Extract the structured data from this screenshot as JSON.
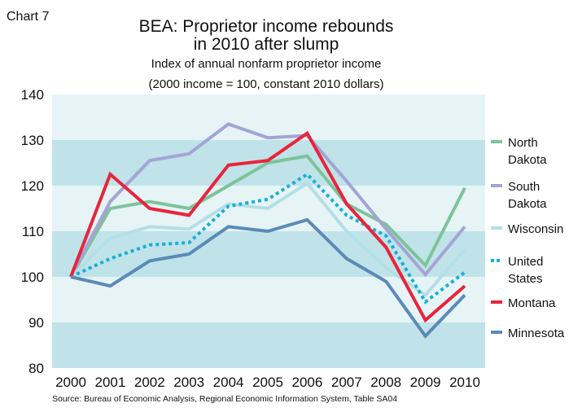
{
  "figure_label": "Chart 7",
  "source_note": "Source: Bureau of Economic Analysis, Regional Economic Information System, Table SA04",
  "chart_data": {
    "type": "line",
    "title_lines": [
      "BEA: Proprietor income rebounds",
      "in 2010 after slump"
    ],
    "subtitle_lines": [
      "Index of annual nonfarm proprietor income",
      "(2000 income = 100, constant 2010 dollars)"
    ],
    "xlabel": "",
    "ylabel": "",
    "x": [
      "2000",
      "2001",
      "2002",
      "2003",
      "2004",
      "2005",
      "2006",
      "2007",
      "2008",
      "2009",
      "2010"
    ],
    "ylim": [
      80,
      140
    ],
    "yticks": [
      "80",
      "90",
      "100",
      "110",
      "120",
      "130",
      "140"
    ],
    "grid": false,
    "band_colors": [
      "#bfe3e8",
      "#e6f4f6"
    ],
    "legend_position": "right",
    "series": [
      {
        "name": "North Dakota",
        "legend_lines": [
          "North",
          "Dakota"
        ],
        "color": "#7dc39a",
        "dash": "solid",
        "values": [
          100,
          115,
          116.5,
          115,
          120,
          125,
          126.5,
          116,
          111.5,
          102.5,
          119.5
        ]
      },
      {
        "name": "South Dakota",
        "legend_lines": [
          "South",
          "Dakota"
        ],
        "color": "#a3a4d6",
        "dash": "solid",
        "values": [
          100,
          116.5,
          125.5,
          127,
          133.5,
          130.5,
          131,
          121,
          110.5,
          100.5,
          111
        ]
      },
      {
        "name": "Wisconsin",
        "legend_lines": [
          "Wisconsin"
        ],
        "color": "#b3dfe6",
        "dash": "solid",
        "values": [
          100,
          108.5,
          111,
          110.5,
          116,
          115,
          120.5,
          110,
          102,
          96,
          106
        ]
      },
      {
        "name": "United States",
        "legend_lines": [
          "United",
          "States"
        ],
        "color": "#1aaed6",
        "dash": "dotted",
        "values": [
          100,
          104,
          107,
          107.5,
          115.5,
          117,
          122.5,
          113.5,
          109,
          94.5,
          101
        ]
      },
      {
        "name": "Montana",
        "legend_lines": [
          "Montana"
        ],
        "color": "#e8243c",
        "dash": "solid",
        "values": [
          100,
          122.5,
          115,
          113.5,
          124.5,
          125.5,
          131.5,
          116,
          106.5,
          90.5,
          98
        ]
      },
      {
        "name": "Minnesota",
        "legend_lines": [
          "Minnesota"
        ],
        "color": "#5b8ab8",
        "dash": "solid",
        "values": [
          100,
          98,
          103.5,
          105,
          111,
          110,
          112.5,
          104,
          99,
          87,
          96
        ]
      }
    ]
  }
}
